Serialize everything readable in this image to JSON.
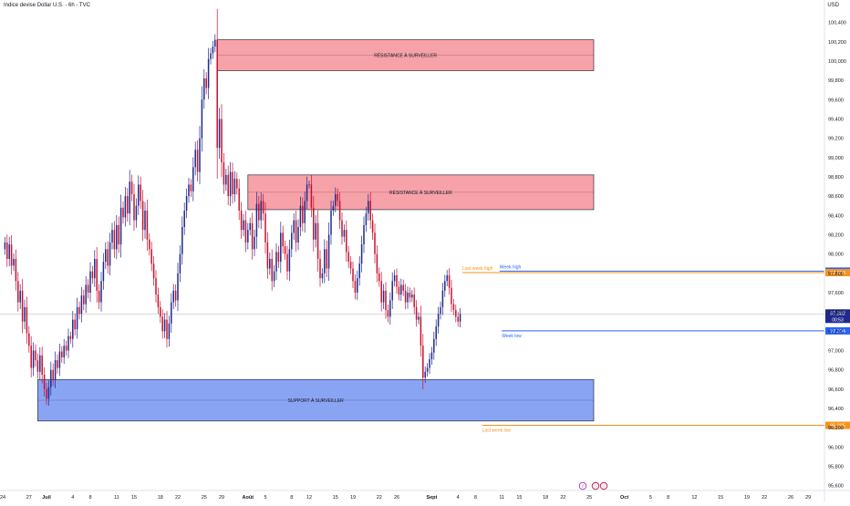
{
  "header": {
    "title": "Indice devise Dollar U.S. - 6h - TVC",
    "currency": "USD"
  },
  "colors": {
    "up": "#1f2a8c",
    "down": "#c8102e",
    "resistance_fill": "#f7a1a8",
    "support_fill": "#8aa4f4",
    "orange": "#f7931a",
    "blue": "#2962ff"
  },
  "chart_data": {
    "type": "candlestick",
    "title": "Indice devise Dollar U.S. - 6h - TVC",
    "yunit": "USD",
    "ylim": [
      95.55,
      100.5
    ],
    "y_ticks": [
      "100,400",
      "100,200",
      "100,000",
      "99,800",
      "99,600",
      "99,400",
      "99,200",
      "99,000",
      "98,800",
      "98,600",
      "98,400",
      "98,200",
      "98,000",
      "97,800",
      "97,600",
      "97,400",
      "97,200",
      "97,000",
      "96,800",
      "96,600",
      "96,400",
      "96,200",
      "96,000",
      "95,800",
      "95,600"
    ],
    "x_ticks": [
      {
        "label": "24",
        "bar": 0
      },
      {
        "label": "27",
        "bar": 12
      },
      {
        "label": "Juil",
        "bar": 20,
        "bold": true
      },
      {
        "label": "4",
        "bar": 32
      },
      {
        "label": "8",
        "bar": 40
      },
      {
        "label": "11",
        "bar": 52
      },
      {
        "label": "15",
        "bar": 60
      },
      {
        "label": "18",
        "bar": 72
      },
      {
        "label": "22",
        "bar": 80
      },
      {
        "label": "25",
        "bar": 92
      },
      {
        "label": "29",
        "bar": 100
      },
      {
        "label": "Août",
        "bar": 112,
        "bold": true
      },
      {
        "label": "5",
        "bar": 120
      },
      {
        "label": "8",
        "bar": 132
      },
      {
        "label": "12",
        "bar": 140
      },
      {
        "label": "15",
        "bar": 152
      },
      {
        "label": "19",
        "bar": 160
      },
      {
        "label": "22",
        "bar": 172
      },
      {
        "label": "26",
        "bar": 180
      },
      {
        "label": "Sept",
        "bar": 196,
        "bold": true
      },
      {
        "label": "4",
        "bar": 208
      },
      {
        "label": "8",
        "bar": 216
      },
      {
        "label": "11",
        "bar": 228
      },
      {
        "label": "15",
        "bar": 236
      },
      {
        "label": "18",
        "bar": 248
      },
      {
        "label": "22",
        "bar": 256
      },
      {
        "label": "25",
        "bar": 268
      },
      {
        "label": "Oct",
        "bar": 284,
        "bold": true
      },
      {
        "label": "5",
        "bar": 296
      },
      {
        "label": "8",
        "bar": 304
      },
      {
        "label": "12",
        "bar": 316
      },
      {
        "label": "15",
        "bar": 328
      },
      {
        "label": "19",
        "bar": 340
      },
      {
        "label": "22",
        "bar": 348
      },
      {
        "label": "26",
        "bar": 360
      },
      {
        "label": "29",
        "bar": 368
      }
    ],
    "closes": [
      98.05,
      98.12,
      97.95,
      98.1,
      97.88,
      97.95,
      97.72,
      97.5,
      97.62,
      97.3,
      97.45,
      97.18,
      97.05,
      96.82,
      97.0,
      96.9,
      96.78,
      96.95,
      96.75,
      96.6,
      96.5,
      96.62,
      96.8,
      96.7,
      96.9,
      96.82,
      96.99,
      96.93,
      97.05,
      97.0,
      97.15,
      97.12,
      97.32,
      97.22,
      97.45,
      97.38,
      97.57,
      97.48,
      97.68,
      97.6,
      97.82,
      97.75,
      97.95,
      97.62,
      97.5,
      97.72,
      97.92,
      98.05,
      97.88,
      98.12,
      98.25,
      98.05,
      98.3,
      98.1,
      98.48,
      98.38,
      98.6,
      98.42,
      98.75,
      98.62,
      98.35,
      98.5,
      98.72,
      98.55,
      98.25,
      98.45,
      98.15,
      98.05,
      97.9,
      97.75,
      97.58,
      97.45,
      97.35,
      97.2,
      97.32,
      97.12,
      97.28,
      97.5,
      97.62,
      97.52,
      97.8,
      98.0,
      98.28,
      98.45,
      98.6,
      98.72,
      98.65,
      98.9,
      99.08,
      98.85,
      99.2,
      99.6,
      99.82,
      99.72,
      100.02,
      100.08,
      100.15,
      100.22,
      99.1,
      99.4,
      98.95,
      98.72,
      98.82,
      98.6,
      98.85,
      98.62,
      98.78,
      98.68,
      98.45,
      98.25,
      98.35,
      98.12,
      98.25,
      98.32,
      98.05,
      98.18,
      98.52,
      98.35,
      98.55,
      98.42,
      98.12,
      97.85,
      97.95,
      97.72,
      97.82,
      98.02,
      97.92,
      98.22,
      98.08,
      98.0,
      97.82,
      98.05,
      98.22,
      98.35,
      98.12,
      98.28,
      98.5,
      98.32,
      98.55,
      98.72,
      98.72,
      98.48,
      98.15,
      98.32,
      97.95,
      97.75,
      97.8,
      98.05,
      97.85,
      98.2,
      98.45,
      98.5,
      98.62,
      98.55,
      98.35,
      98.18,
      98.25,
      98.02,
      97.92,
      97.85,
      97.72,
      97.6,
      97.75,
      97.9,
      98.1,
      98.3,
      98.42,
      98.55,
      98.35,
      98.22,
      98.0,
      97.8,
      97.72,
      97.5,
      97.62,
      97.42,
      97.35,
      97.52,
      97.72,
      97.78,
      97.66,
      97.58,
      97.68,
      97.62,
      97.5,
      97.6,
      97.55,
      97.58,
      97.45,
      97.32,
      97.35,
      97.05,
      96.72,
      96.78,
      96.82,
      96.91,
      96.98,
      97.12,
      97.25,
      97.38,
      97.45,
      97.62,
      97.72,
      97.78,
      97.65,
      97.48,
      97.42,
      97.35,
      97.3,
      97.38
    ],
    "zones": [
      {
        "label": "RÉSISTANCE À SURVEILLER",
        "top": 100.22,
        "bottom": 99.9,
        "from_bar": 98,
        "to_bar": 270,
        "type": "resistance"
      },
      {
        "label": "RÉSISTANCE À SURVEILLER",
        "top": 98.82,
        "bottom": 98.46,
        "from_bar": 112,
        "to_bar": 270,
        "type": "resistance"
      },
      {
        "label": "SUPPORT À SURVEILLER",
        "top": 96.7,
        "bottom": 96.27,
        "from_bar": 16,
        "to_bar": 270,
        "type": "support"
      }
    ],
    "levels": [
      {
        "label": "Week high",
        "price": 97.823,
        "price_label": "97,823",
        "color": "blue",
        "from_bar": 227
      },
      {
        "label": "Last week high",
        "price": 97.808,
        "price_label": "97,808",
        "color": "orange",
        "from_bar": 210
      },
      {
        "label": "Week low",
        "price": 97.204,
        "price_label": "97,204",
        "color": "blue",
        "from_bar": 228
      },
      {
        "label": "Last week low",
        "price": 96.225,
        "price_label": "96,225",
        "color": "orange",
        "from_bar": 219
      }
    ],
    "current": {
      "price": 97.38,
      "price_label": "97,382",
      "countdown": "00:53"
    }
  }
}
